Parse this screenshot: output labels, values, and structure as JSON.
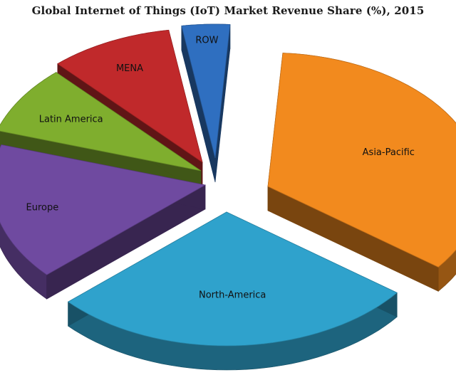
{
  "chart_data": {
    "type": "pie",
    "title": "Global Internet of Things (IoT) Market Revenue Share (%), 2015",
    "slices": [
      {
        "label": "Asia-Pacific",
        "value": 33,
        "color": "#f28a1e"
      },
      {
        "label": "North-America",
        "value": 27,
        "color": "#2fa2cc"
      },
      {
        "label": "Europe",
        "value": 16,
        "color": "#6f4aa0"
      },
      {
        "label": "Latin America",
        "value": 8,
        "color": "#7fae2e"
      },
      {
        "label": "MENA",
        "value": 9,
        "color": "#c0292b"
      },
      {
        "label": "ROW",
        "value": 3.5,
        "color": "#2f6fc0"
      }
    ],
    "exploded": true,
    "three_d": true
  }
}
